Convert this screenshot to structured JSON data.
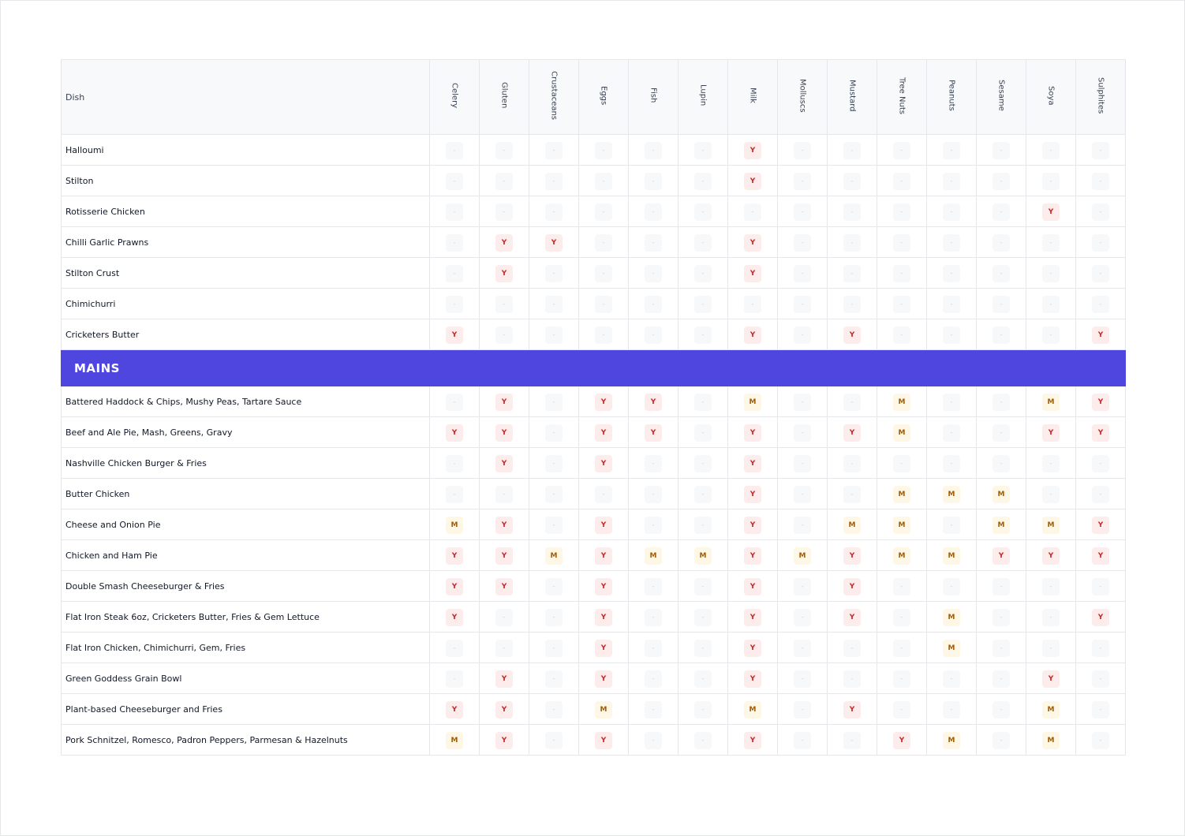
{
  "columns": {
    "dish": "Dish",
    "allergens": [
      "Celery",
      "Gluten",
      "Crustaceans",
      "Eggs",
      "Fish",
      "Lupin",
      "Milk",
      "Molluscs",
      "Mustard",
      "Tree Nuts",
      "Peanuts",
      "Sesame",
      "Soya",
      "Sulphites"
    ]
  },
  "colors": {
    "yes": "#c62828",
    "may": "#a15c07",
    "section": "#4f46e0"
  },
  "rows": [
    {
      "type": "dish",
      "name": "Halloumi",
      "values": [
        "-",
        "-",
        "-",
        "-",
        "-",
        "-",
        "Y",
        "-",
        "-",
        "-",
        "-",
        "-",
        "-",
        "-"
      ]
    },
    {
      "type": "dish",
      "name": "Stilton",
      "values": [
        "-",
        "-",
        "-",
        "-",
        "-",
        "-",
        "Y",
        "-",
        "-",
        "-",
        "-",
        "-",
        "-",
        "-"
      ]
    },
    {
      "type": "dish",
      "name": "Rotisserie Chicken",
      "values": [
        "-",
        "-",
        "-",
        "-",
        "-",
        "-",
        "-",
        "-",
        "-",
        "-",
        "-",
        "-",
        "Y",
        "-"
      ]
    },
    {
      "type": "dish",
      "name": "Chilli Garlic Prawns",
      "values": [
        "-",
        "Y",
        "Y",
        "-",
        "-",
        "-",
        "Y",
        "-",
        "-",
        "-",
        "-",
        "-",
        "-",
        "-"
      ]
    },
    {
      "type": "dish",
      "name": "Stilton Crust",
      "values": [
        "-",
        "Y",
        "-",
        "-",
        "-",
        "-",
        "Y",
        "-",
        "-",
        "-",
        "-",
        "-",
        "-",
        "-"
      ]
    },
    {
      "type": "dish",
      "name": "Chimichurri",
      "values": [
        "-",
        "-",
        "-",
        "-",
        "-",
        "-",
        "-",
        "-",
        "-",
        "-",
        "-",
        "-",
        "-",
        "-"
      ]
    },
    {
      "type": "dish",
      "name": "Cricketers Butter",
      "values": [
        "Y",
        "-",
        "-",
        "-",
        "-",
        "-",
        "Y",
        "-",
        "Y",
        "-",
        "-",
        "-",
        "-",
        "Y"
      ]
    },
    {
      "type": "section",
      "name": "MAINS"
    },
    {
      "type": "dish",
      "name": "Battered Haddock & Chips, Mushy Peas, Tartare Sauce",
      "values": [
        "-",
        "Y",
        "-",
        "Y",
        "Y",
        "-",
        "M",
        "-",
        "-",
        "M",
        "-",
        "-",
        "M",
        "Y"
      ]
    },
    {
      "type": "dish",
      "name": "Beef and Ale Pie, Mash, Greens, Gravy",
      "values": [
        "Y",
        "Y",
        "-",
        "Y",
        "Y",
        "-",
        "Y",
        "-",
        "Y",
        "M",
        "-",
        "-",
        "Y",
        "Y"
      ]
    },
    {
      "type": "dish",
      "name": "Nashville Chicken Burger & Fries",
      "values": [
        "-",
        "Y",
        "-",
        "Y",
        "-",
        "-",
        "Y",
        "-",
        "-",
        "-",
        "-",
        "-",
        "-",
        "-"
      ]
    },
    {
      "type": "dish",
      "name": "Butter Chicken",
      "values": [
        "-",
        "-",
        "-",
        "-",
        "-",
        "-",
        "Y",
        "-",
        "-",
        "M",
        "M",
        "M",
        "-",
        "-"
      ]
    },
    {
      "type": "dish",
      "name": "Cheese and Onion Pie",
      "values": [
        "M",
        "Y",
        "-",
        "Y",
        "-",
        "-",
        "Y",
        "-",
        "M",
        "M",
        "-",
        "M",
        "M",
        "Y"
      ]
    },
    {
      "type": "dish",
      "name": "Chicken and Ham Pie",
      "values": [
        "Y",
        "Y",
        "M",
        "Y",
        "M",
        "M",
        "Y",
        "M",
        "Y",
        "M",
        "M",
        "Y",
        "Y",
        "Y"
      ]
    },
    {
      "type": "dish",
      "name": "Double Smash Cheeseburger & Fries",
      "values": [
        "Y",
        "Y",
        "-",
        "Y",
        "-",
        "-",
        "Y",
        "-",
        "Y",
        "-",
        "-",
        "-",
        "-",
        "-"
      ]
    },
    {
      "type": "dish",
      "name": "Flat Iron Steak 6oz, Cricketers Butter, Fries & Gem Lettuce",
      "values": [
        "Y",
        "-",
        "-",
        "Y",
        "-",
        "-",
        "Y",
        "-",
        "Y",
        "-",
        "M",
        "-",
        "-",
        "Y"
      ]
    },
    {
      "type": "dish",
      "name": "Flat Iron Chicken, Chimichurri, Gem, Fries",
      "values": [
        "-",
        "-",
        "-",
        "Y",
        "-",
        "-",
        "Y",
        "-",
        "-",
        "-",
        "M",
        "-",
        "-",
        "-"
      ]
    },
    {
      "type": "dish",
      "name": "Green Goddess Grain Bowl",
      "values": [
        "-",
        "Y",
        "-",
        "Y",
        "-",
        "-",
        "Y",
        "-",
        "-",
        "-",
        "-",
        "-",
        "Y",
        "-"
      ]
    },
    {
      "type": "dish",
      "name": "Plant-based Cheeseburger and Fries",
      "values": [
        "Y",
        "Y",
        "-",
        "M",
        "-",
        "-",
        "M",
        "-",
        "Y",
        "-",
        "-",
        "-",
        "M",
        "-"
      ]
    },
    {
      "type": "dish",
      "name": "Pork Schnitzel, Romesco, Padron Peppers, Parmesan & Hazelnuts",
      "values": [
        "M",
        "Y",
        "-",
        "Y",
        "-",
        "-",
        "Y",
        "-",
        "-",
        "Y",
        "M",
        "-",
        "M",
        "-"
      ]
    }
  ]
}
